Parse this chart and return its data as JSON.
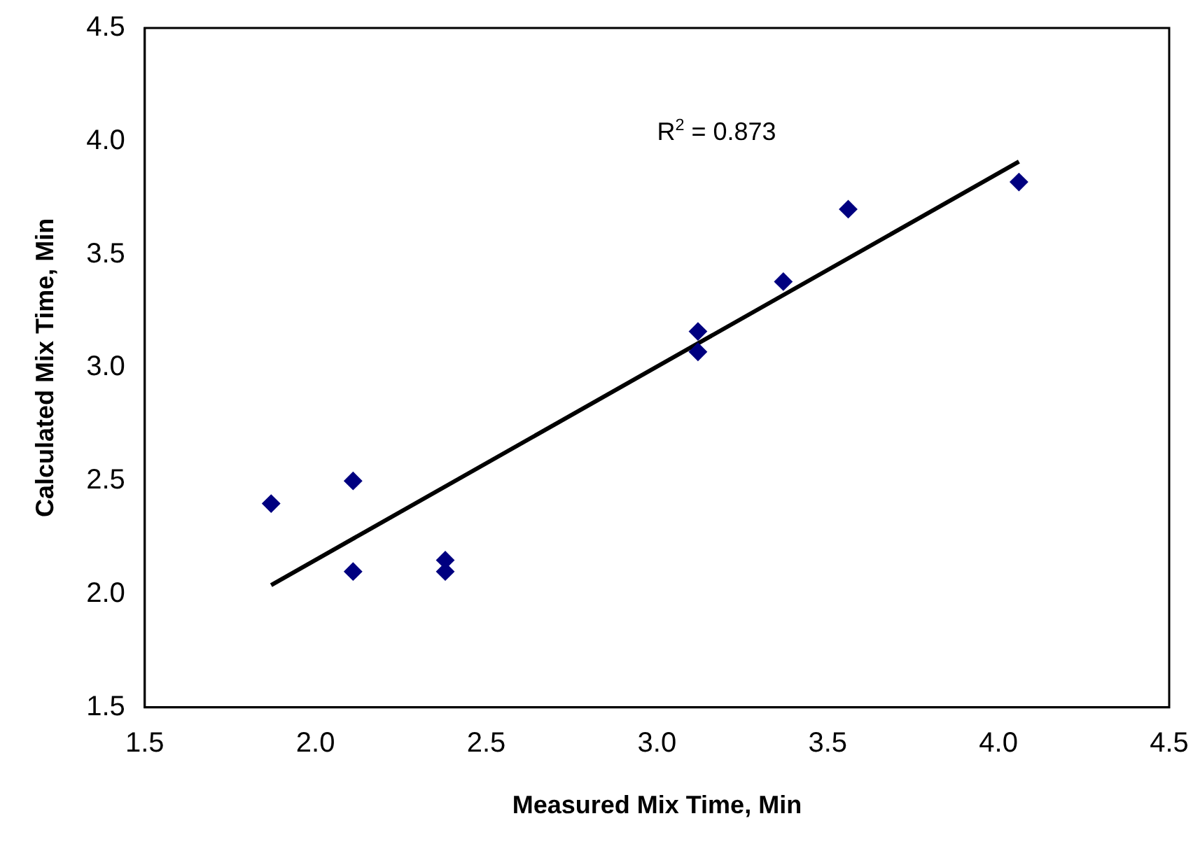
{
  "chart_data": {
    "type": "scatter",
    "xlabel": "Measured Mix Time, Min",
    "ylabel": "Calculated Mix Time, Min",
    "series": [
      {
        "color": "#000080",
        "marker": "diamond",
        "x": [
          1.87,
          2.11,
          2.11,
          2.38,
          2.38,
          3.12,
          3.12,
          3.37,
          3.56,
          4.06
        ],
        "values": [
          2.4,
          2.5,
          2.1,
          2.15,
          2.1,
          3.16,
          3.07,
          3.38,
          3.7,
          3.82
        ]
      },
      {
        "type": "line",
        "color": "#000000",
        "marker": "none",
        "line_style": "solid",
        "x": [
          1.87,
          4.06
        ],
        "values": [
          2.04,
          3.91
        ]
      }
    ],
    "xlim": [
      1.5,
      4.5
    ],
    "ylim": [
      1.5,
      4.5
    ],
    "xticks": [
      {
        "value": 1.5,
        "label": "1.5"
      },
      {
        "value": 2,
        "label": "2.0"
      },
      {
        "value": 2.5,
        "label": "2.5"
      },
      {
        "value": 3,
        "label": "3.0"
      },
      {
        "value": 3.5,
        "label": "3.5"
      },
      {
        "value": 4,
        "label": "4.0"
      },
      {
        "value": 4.5,
        "label": "4.5"
      }
    ],
    "yticks": [
      {
        "value": 1.5,
        "label": "1.5"
      },
      {
        "value": 2,
        "label": "2.0"
      },
      {
        "value": 2.5,
        "label": "2.5"
      },
      {
        "value": 3,
        "label": "3.0"
      },
      {
        "value": 3.5,
        "label": "3.5"
      },
      {
        "value": 4,
        "label": "4.0"
      },
      {
        "value": 4.5,
        "label": "4.5"
      }
    ],
    "grid": false,
    "legend": false,
    "annotations": [
      "R$^{2}$ = 0.873"
    ]
  }
}
